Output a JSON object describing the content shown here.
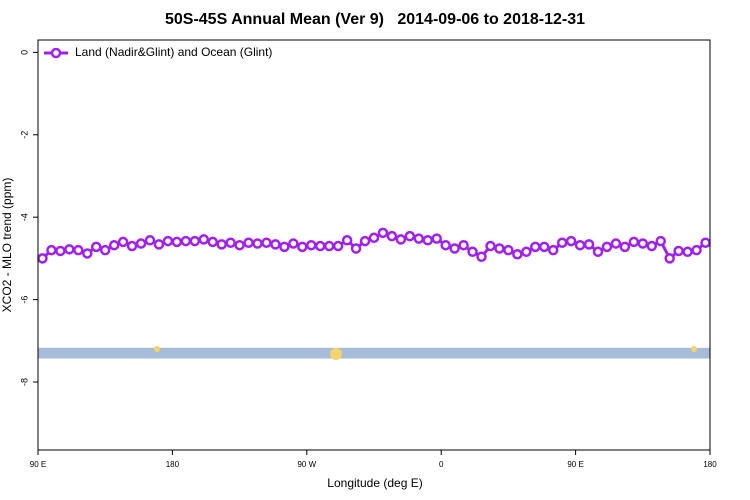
{
  "chart_data": {
    "type": "line",
    "title": "50S-45S Annual Mean (Ver 9)   2014-09-06 to 2018-12-31",
    "xlabel": "Longitude (deg E)",
    "ylabel": "XCO2 - MLO trend (ppm)",
    "xlim": [
      90,
      540
    ],
    "xticks": [
      {
        "value": 90,
        "label": "90 E"
      },
      180,
      {
        "value": 270,
        "label": "90 W"
      },
      {
        "value": 360,
        "label": "0"
      },
      {
        "value": 450,
        "label": "90 E"
      },
      {
        "value": 540,
        "label": "180"
      }
    ],
    "ylim": [
      -9.65,
      0.3
    ],
    "yticks": [
      0,
      -2,
      -4,
      -6,
      -8
    ],
    "legend": "top-left",
    "band": {
      "ymin": -7.43,
      "ymax": -7.17,
      "color": "#a7bcd9"
    },
    "x": [
      93,
      99,
      105,
      111,
      117,
      123,
      129,
      135,
      141,
      147,
      153,
      159,
      165,
      171,
      177,
      183,
      189,
      195,
      201,
      207,
      213,
      219,
      225,
      231,
      237,
      243,
      249,
      255,
      261,
      267,
      273,
      279,
      285,
      291,
      297,
      303,
      309,
      315,
      321,
      327,
      333,
      339,
      345,
      351,
      357,
      363,
      369,
      375,
      381,
      387,
      393,
      399,
      405,
      411,
      417,
      423,
      429,
      435,
      441,
      447,
      453,
      459,
      465,
      471,
      477,
      483,
      489,
      495,
      501,
      507,
      513,
      519,
      525,
      531,
      537
    ],
    "series": [
      {
        "name": "Land (Nadir&Glint) and Ocean (Glint)",
        "color": "#a020f0",
        "values": [
          -5.0,
          -4.8,
          -4.82,
          -4.78,
          -4.8,
          -4.88,
          -4.72,
          -4.8,
          -4.68,
          -4.6,
          -4.7,
          -4.64,
          -4.56,
          -4.66,
          -4.58,
          -4.6,
          -4.58,
          -4.58,
          -4.54,
          -4.6,
          -4.66,
          -4.62,
          -4.68,
          -4.62,
          -4.64,
          -4.62,
          -4.66,
          -4.72,
          -4.64,
          -4.72,
          -4.68,
          -4.7,
          -4.7,
          -4.7,
          -4.56,
          -4.76,
          -4.58,
          -4.5,
          -4.38,
          -4.46,
          -4.54,
          -4.46,
          -4.52,
          -4.56,
          -4.52,
          -4.68,
          -4.76,
          -4.68,
          -4.84,
          -4.96,
          -4.7,
          -4.76,
          -4.8,
          -4.9,
          -4.84,
          -4.72,
          -4.72,
          -4.8,
          -4.62,
          -4.58,
          -4.68,
          -4.66,
          -4.84,
          -4.72,
          -4.64,
          -4.72,
          -4.6,
          -4.64,
          -4.7,
          -4.58,
          -5.0,
          -4.82,
          -4.84,
          -4.8,
          -4.62
        ]
      }
    ]
  }
}
